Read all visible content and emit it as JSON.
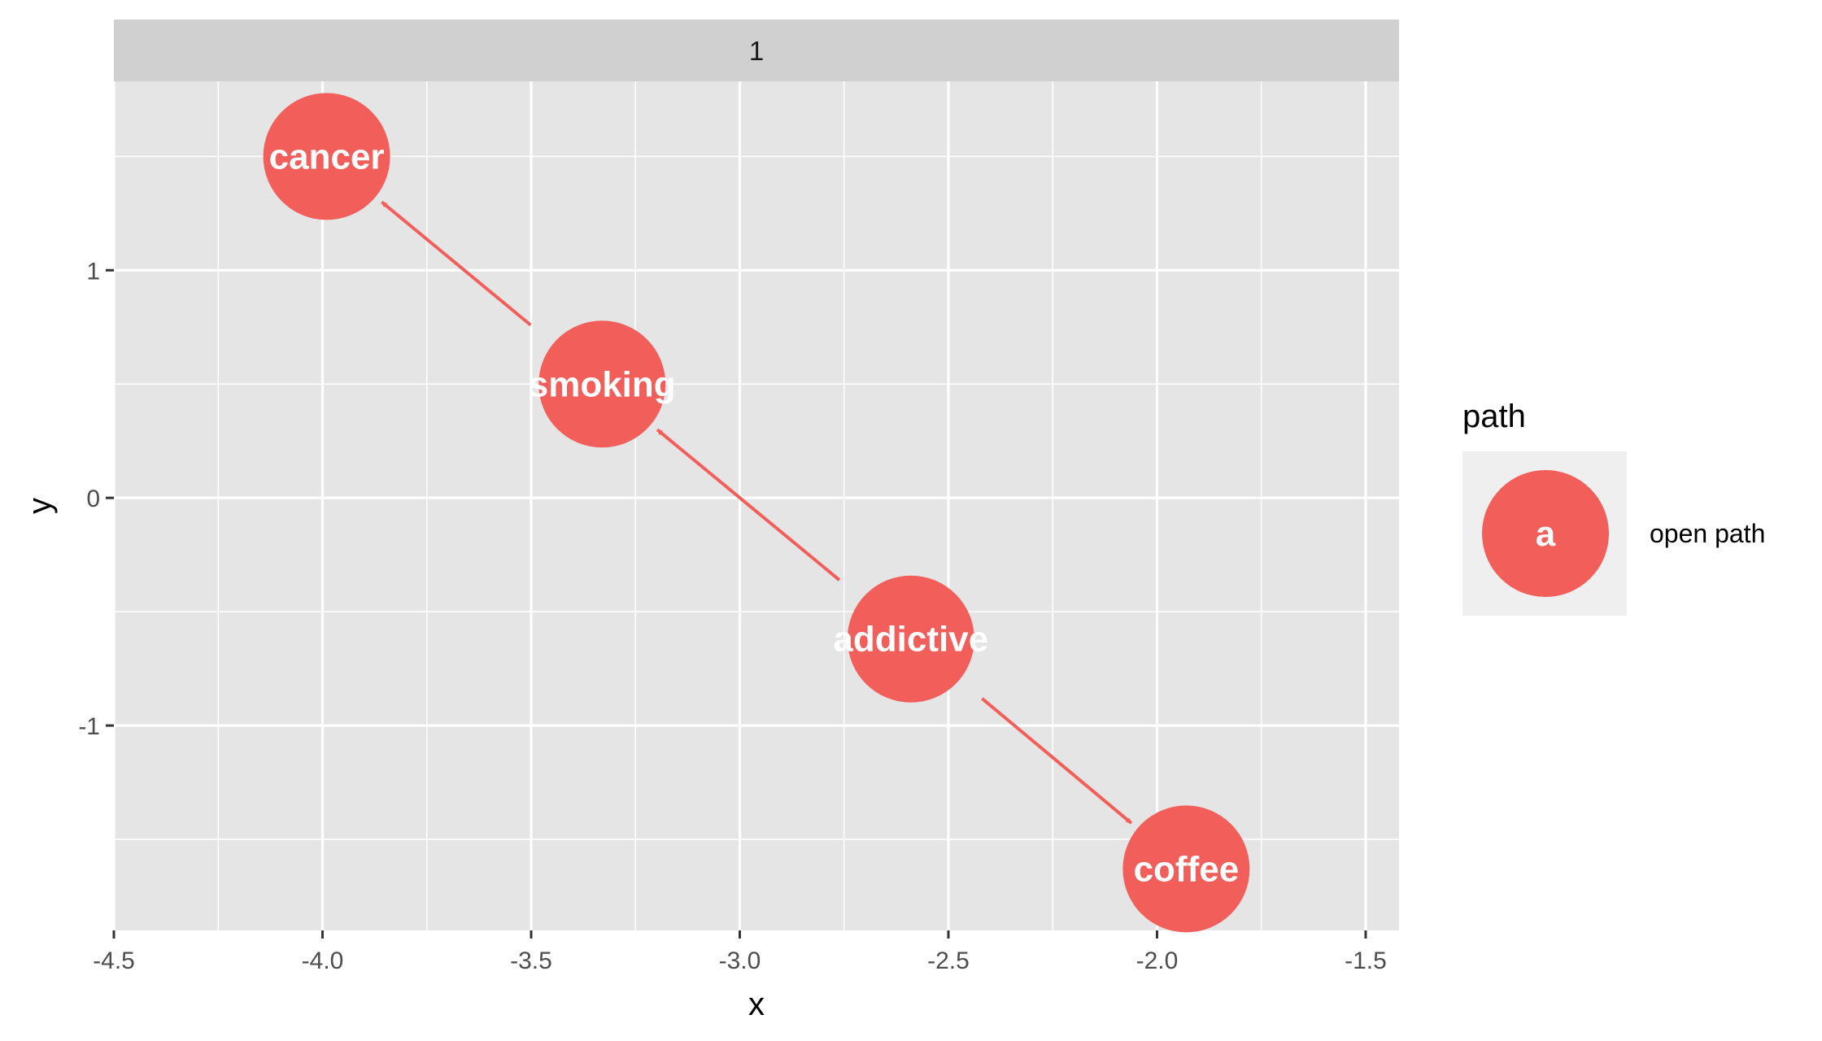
{
  "chart_data": {
    "type": "scatter",
    "facet": {
      "label": "1"
    },
    "xlabel": "x",
    "ylabel": "y",
    "xlim": [
      -4.5,
      -1.42
    ],
    "ylim": [
      -1.9,
      1.83
    ],
    "x_ticks": [
      -4.5,
      -4.0,
      -3.5,
      -3.0,
      -2.5,
      -2.0,
      -1.5
    ],
    "x_tick_labels": [
      "-4.5",
      "-4.0",
      "-3.5",
      "-3.0",
      "-2.5",
      "-2.0",
      "-1.5"
    ],
    "y_ticks": [
      -1,
      0,
      1
    ],
    "y_tick_labels": [
      "-1",
      "0",
      "1"
    ],
    "grid": true,
    "nodes": [
      {
        "name": "cancer",
        "x": -3.99,
        "y": 1.5
      },
      {
        "name": "smoking",
        "x": -3.33,
        "y": 0.5
      },
      {
        "name": "addictive",
        "x": -2.59,
        "y": -0.62
      },
      {
        "name": "coffee",
        "x": -1.93,
        "y": -1.63
      }
    ],
    "edges": [
      {
        "from": "smoking",
        "to": "cancer"
      },
      {
        "from": "addictive",
        "to": "smoking"
      },
      {
        "from": "addictive",
        "to": "coffee"
      }
    ],
    "legend": {
      "title": "path",
      "key_text": "a",
      "entries": [
        {
          "label": "open path"
        }
      ],
      "position": "right"
    },
    "colors": {
      "node": "#f25f5b",
      "panel": "#e5e5e5",
      "strip": "#d0d0d0",
      "grid": "#ffffff",
      "legend_key_bg": "#efefef"
    }
  }
}
